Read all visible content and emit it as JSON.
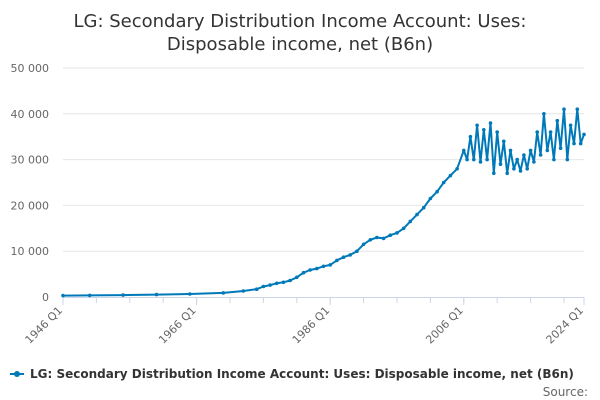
{
  "colors": {
    "series": "#0079b9",
    "grid": "#e6e6e6",
    "axis": "#ccd6eb",
    "text": "#333333",
    "muted": "#666666"
  },
  "chart_data": {
    "type": "line",
    "title": "LG: Secondary Distribution Income Account: Uses:",
    "subtitle": "Disposable income, net (B6n)",
    "xlabel": "",
    "ylabel": "",
    "ylim": [
      0,
      50000
    ],
    "yticks": [
      "0",
      "10 000",
      "20 000",
      "30 000",
      "40 000",
      "50 000"
    ],
    "xticks": [
      "1946 Q1",
      "1966 Q1",
      "1986 Q1",
      "2006 Q1",
      "2024 Q1"
    ],
    "x_range": [
      "1946 Q1",
      "2024 Q1"
    ],
    "grid": true,
    "legend_position": "bottom",
    "series": [
      {
        "name": "LG: Secondary Distribution Income Account: Uses: Disposable income, net (B6n)",
        "x": [
          "1946 Q1",
          "1950 Q1",
          "1955 Q1",
          "1960 Q1",
          "1965 Q1",
          "1970 Q1",
          "1973 Q1",
          "1975 Q1",
          "1976 Q1",
          "1977 Q1",
          "1978 Q1",
          "1979 Q1",
          "1980 Q1",
          "1981 Q1",
          "1982 Q1",
          "1983 Q1",
          "1984 Q1",
          "1985 Q1",
          "1986 Q1",
          "1987 Q1",
          "1988 Q1",
          "1989 Q1",
          "1990 Q1",
          "1991 Q1",
          "1992 Q1",
          "1993 Q1",
          "1994 Q1",
          "1995 Q1",
          "1996 Q1",
          "1997 Q1",
          "1998 Q1",
          "1999 Q1",
          "2000 Q1",
          "2001 Q1",
          "2002 Q1",
          "2003 Q1",
          "2004 Q1",
          "2005 Q1",
          "2006 Q1",
          "2006 Q3",
          "2007 Q1",
          "2007 Q3",
          "2008 Q1",
          "2008 Q3",
          "2009 Q1",
          "2009 Q3",
          "2010 Q1",
          "2010 Q3",
          "2011 Q1",
          "2011 Q3",
          "2012 Q1",
          "2012 Q3",
          "2013 Q1",
          "2013 Q3",
          "2014 Q1",
          "2014 Q3",
          "2015 Q1",
          "2015 Q3",
          "2016 Q1",
          "2016 Q3",
          "2017 Q1",
          "2017 Q3",
          "2018 Q1",
          "2018 Q3",
          "2019 Q1",
          "2019 Q3",
          "2020 Q1",
          "2020 Q3",
          "2021 Q1",
          "2021 Q3",
          "2022 Q1",
          "2022 Q3",
          "2023 Q1",
          "2023 Q3",
          "2024 Q1"
        ],
        "values": [
          300,
          350,
          420,
          520,
          650,
          900,
          1300,
          1700,
          2300,
          2600,
          3000,
          3200,
          3600,
          4300,
          5300,
          5900,
          6200,
          6700,
          7000,
          8000,
          8700,
          9200,
          10000,
          11500,
          12500,
          13000,
          12800,
          13500,
          14000,
          15000,
          16500,
          18000,
          19500,
          21500,
          23000,
          25000,
          26500,
          28000,
          32000,
          30000,
          35000,
          30000,
          37500,
          29500,
          36500,
          30000,
          38000,
          27000,
          36000,
          29000,
          34000,
          27000,
          32000,
          28000,
          30000,
          27500,
          31000,
          28000,
          32000,
          29500,
          36000,
          31000,
          40000,
          32000,
          36000,
          30000,
          38500,
          32500,
          41000,
          30000,
          37500,
          33500,
          41000,
          33500,
          35500
        ]
      }
    ]
  },
  "legend": {
    "label": "LG: Secondary Distribution Income Account: Uses: Disposable income, net (B6n)"
  },
  "source": {
    "label": "Source:"
  }
}
